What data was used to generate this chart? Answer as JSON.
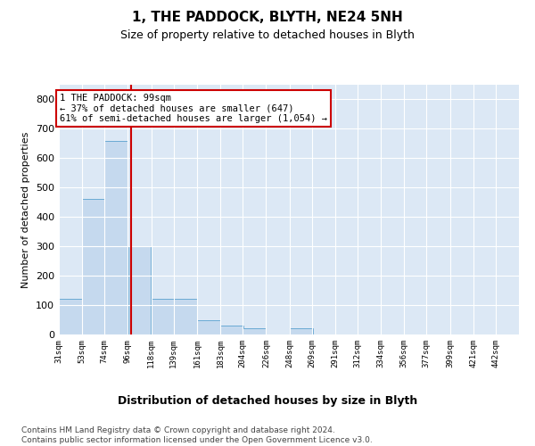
{
  "title1": "1, THE PADDOCK, BLYTH, NE24 5NH",
  "title2": "Size of property relative to detached houses in Blyth",
  "xlabel": "Distribution of detached houses by size in Blyth",
  "ylabel": "Number of detached properties",
  "bar_color": "#c5d9ee",
  "bar_edge_color": "#6aaad4",
  "background_color": "#dce8f5",
  "grid_color": "#ffffff",
  "vline_color": "#cc0000",
  "property_size": 99,
  "annotation_line1": "1 THE PADDOCK: 99sqm",
  "annotation_line2": "← 37% of detached houses are smaller (647)",
  "annotation_line3": "61% of semi-detached houses are larger (1,054) →",
  "bins_left": [
    31,
    53,
    74,
    96,
    118,
    139,
    161,
    183,
    204,
    226,
    248,
    269,
    291,
    312,
    334,
    356,
    377,
    399,
    421,
    442
  ],
  "xlim_right": 464,
  "bin_width": 22,
  "counts": [
    120,
    460,
    660,
    300,
    120,
    120,
    50,
    30,
    20,
    0,
    20,
    0,
    0,
    0,
    0,
    0,
    0,
    0,
    0,
    0
  ],
  "ylim": [
    0,
    850
  ],
  "yticks": [
    0,
    100,
    200,
    300,
    400,
    500,
    600,
    700,
    800
  ],
  "footnote_line1": "Contains HM Land Registry data © Crown copyright and database right 2024.",
  "footnote_line2": "Contains public sector information licensed under the Open Government Licence v3.0."
}
